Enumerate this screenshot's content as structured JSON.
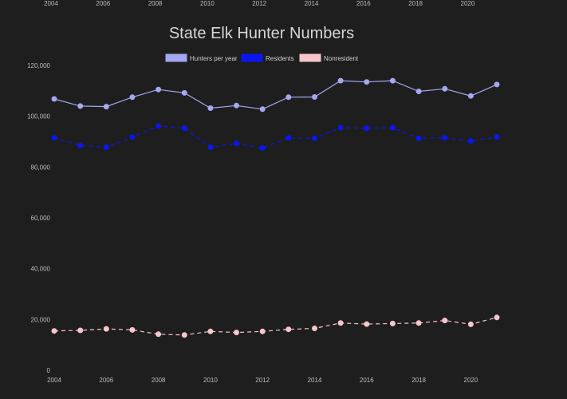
{
  "chart_data": {
    "type": "line",
    "title": "State Elk Hunter Numbers",
    "x": [
      "2004",
      "2005",
      "2006",
      "2007",
      "2008",
      "2009",
      "2010",
      "2011",
      "2012",
      "2013",
      "2014",
      "2015",
      "2016",
      "2017",
      "2018",
      "2019",
      "2020",
      "2021"
    ],
    "x_tick_labels": [
      "2004",
      "2006",
      "2008",
      "2010",
      "2012",
      "2014",
      "2016",
      "2018",
      "2020"
    ],
    "top_x_tick_labels": [
      "2004",
      "2006",
      "2008",
      "2010",
      "2012",
      "2014",
      "2016",
      "2018",
      "2020"
    ],
    "y_tick_labels": [
      "0",
      "20,000",
      "40,000",
      "60,000",
      "80,000",
      "100,000",
      "120,000"
    ],
    "ylim": [
      0,
      120000
    ],
    "grid": false,
    "legend_position": "top",
    "series": [
      {
        "name": "Hunters per year",
        "color": "#a3a8f0",
        "dash": "solid",
        "values": [
          106800,
          104000,
          103800,
          107500,
          110500,
          109200,
          103200,
          104200,
          102800,
          107500,
          107600,
          114000,
          113500,
          114000,
          109800,
          110800,
          108000,
          112500
        ]
      },
      {
        "name": "Residents",
        "color": "#0a16f2",
        "dash": "dashed",
        "values": [
          91500,
          88500,
          87800,
          91800,
          96200,
          95300,
          87800,
          89300,
          87500,
          91500,
          91300,
          95500,
          95300,
          95500,
          91300,
          91500,
          90300,
          91800
        ]
      },
      {
        "name": "Nonresident",
        "color": "#f6c6cb",
        "dash": "dashed",
        "values": [
          15500,
          15700,
          16300,
          15900,
          14200,
          13900,
          15300,
          14900,
          15300,
          16100,
          16500,
          18600,
          18200,
          18400,
          18600,
          19600,
          18100,
          20800
        ]
      }
    ]
  }
}
